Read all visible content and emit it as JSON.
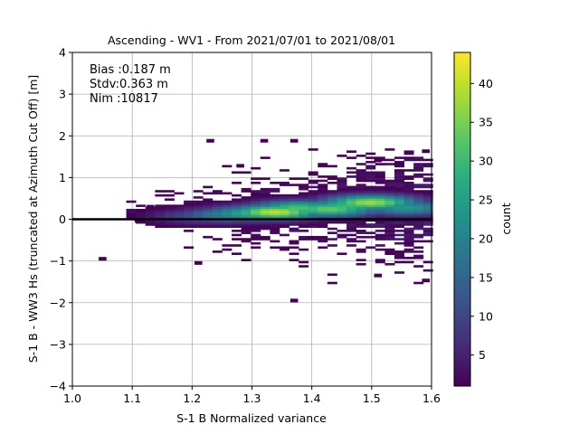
{
  "chart_data": {
    "type": "heatmap",
    "title": "Ascending - WV1 - From 2021/07/01 to 2021/08/01",
    "xlabel": "S-1 B Normalized variance",
    "ylabel": "S-1 B - WW3 Hs (truncated at Azimuth Cut Off) [m]",
    "xlim": [
      1.0,
      1.6
    ],
    "ylim": [
      -4,
      4
    ],
    "x_ticks": [
      "1.0",
      "1.1",
      "1.2",
      "1.3",
      "1.4",
      "1.5",
      "1.6"
    ],
    "y_ticks": [
      "−4",
      "−3",
      "−2",
      "−1",
      "0",
      "1",
      "2",
      "3",
      "4"
    ],
    "grid": true,
    "colormap": "viridis",
    "colorbar": {
      "label": "count",
      "range": [
        1,
        44
      ],
      "ticks": [
        "5",
        "10",
        "15",
        "20",
        "25",
        "30",
        "35",
        "40"
      ]
    },
    "reference_line_y": 0,
    "annotations": [
      "Bias :0.187 m",
      "Stdv:0.363 m",
      "Nim :10817"
    ],
    "bins": {
      "x_edges_range": [
        1.0,
        1.6
      ],
      "y_bin_width": 0.05,
      "description_of_distribution": "counts concentrated near y≈0.1–0.4, increasing toward x≈1.3–1.6"
    },
    "density_peaks": [
      {
        "x": 1.33,
        "y": 0.15,
        "count": 40
      },
      {
        "x": 1.49,
        "y": 0.38,
        "count": 38
      },
      {
        "x": 1.42,
        "y": 0.22,
        "count": 34
      },
      {
        "x": 1.37,
        "y": 0.25,
        "count": 32
      },
      {
        "x": 1.45,
        "y": 0.3,
        "count": 30
      },
      {
        "x": 1.29,
        "y": 0.12,
        "count": 28
      },
      {
        "x": 1.55,
        "y": 0.25,
        "count": 24
      },
      {
        "x": 1.25,
        "y": 0.08,
        "count": 20
      },
      {
        "x": 1.21,
        "y": 0.05,
        "count": 12
      }
    ],
    "outliers": [
      {
        "x": 1.05,
        "y": -0.93
      },
      {
        "x": 1.11,
        "y": -0.02
      },
      {
        "x": 1.13,
        "y": 0.32
      },
      {
        "x": 1.23,
        "y": 1.9
      },
      {
        "x": 1.32,
        "y": 1.9
      },
      {
        "x": 1.37,
        "y": 1.9
      },
      {
        "x": 1.37,
        "y": -1.93
      },
      {
        "x": 1.59,
        "y": 1.65
      },
      {
        "x": 1.59,
        "y": -1.45
      },
      {
        "x": 1.51,
        "y": 1.43
      },
      {
        "x": 1.51,
        "y": -1.33
      },
      {
        "x": 1.21,
        "y": -1.03
      },
      {
        "x": 1.28,
        "y": 1.3
      }
    ]
  }
}
